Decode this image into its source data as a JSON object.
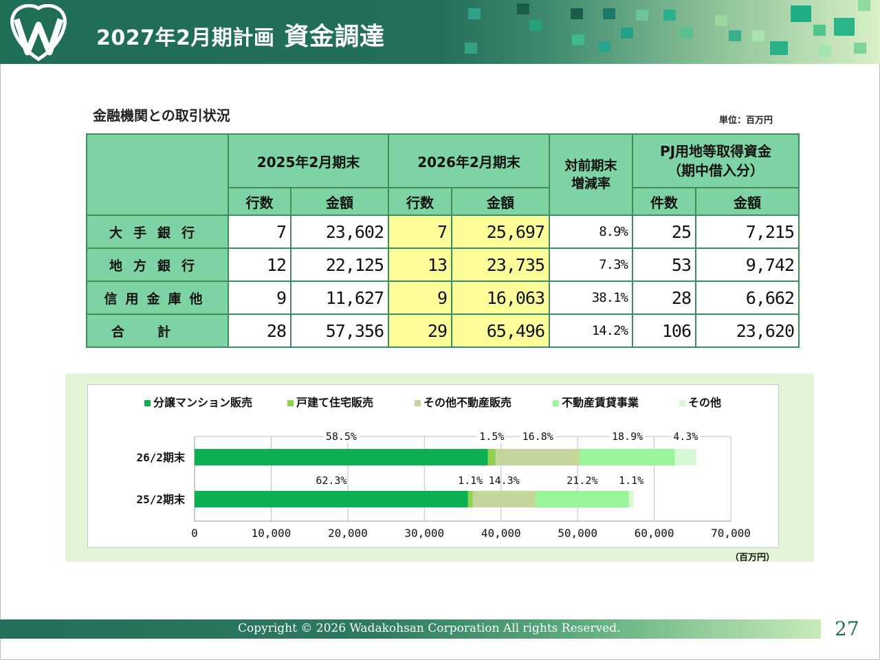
{
  "header": {
    "title": "2027年2月期計画",
    "subtitle": "資金調達",
    "brand_color": "#236f5a"
  },
  "section": {
    "title": "金融機関との取引状況",
    "unit": "単位：百万円"
  },
  "table": {
    "period_headers": [
      "2025年2月期末",
      "2026年2月期末"
    ],
    "rate_header_line1": "対前期末",
    "rate_header_line2": "増減率",
    "pj_header_line1": "PJ用地等取得資金",
    "pj_header_line2": "（期中借入分）",
    "sub_count": "行数",
    "sub_amount": "金額",
    "sub_cases": "件数",
    "rows": [
      {
        "label": "大手銀行",
        "c2025": "7",
        "a2025": "23,602",
        "c2026": "7",
        "a2026": "25,697",
        "rate": "8.9%",
        "cases": "25",
        "pj_amount": "7,215"
      },
      {
        "label": "地方銀行",
        "c2025": "12",
        "a2025": "22,125",
        "c2026": "13",
        "a2026": "23,735",
        "rate": "7.3%",
        "cases": "53",
        "pj_amount": "9,742"
      },
      {
        "label": "信用金庫他",
        "c2025": "9",
        "a2025": "11,627",
        "c2026": "9",
        "a2026": "16,063",
        "rate": "38.1%",
        "cases": "28",
        "pj_amount": "6,662"
      },
      {
        "label": "合計",
        "c2025": "28",
        "a2025": "57,356",
        "c2026": "29",
        "a2026": "65,496",
        "rate": "14.2%",
        "cases": "106",
        "pj_amount": "23,620"
      }
    ]
  },
  "chart_data": {
    "type": "bar",
    "orientation": "horizontal",
    "stacked": true,
    "categories": [
      "26/2期末",
      "25/2期末"
    ],
    "series": [
      {
        "name": "分譲マンション販売",
        "color": "#0bb050",
        "values": [
          38300,
          35700
        ],
        "labels": [
          "58.5%",
          "62.3%"
        ]
      },
      {
        "name": "戸建て住宅販売",
        "color": "#8ed24f",
        "values": [
          1000,
          600
        ],
        "labels": [
          "1.5%",
          "1.1%"
        ]
      },
      {
        "name": "その他不動産販売",
        "color": "#c4d69c",
        "values": [
          11000,
          8200
        ],
        "labels": [
          "16.8%",
          "14.3%"
        ]
      },
      {
        "name": "不動産賃貸事業",
        "color": "#98f59a",
        "values": [
          12400,
          12200
        ],
        "labels": [
          "18.9%",
          "21.2%"
        ]
      },
      {
        "name": "その他",
        "color": "#d7f8d6",
        "values": [
          2800,
          600
        ],
        "labels": [
          "4.3%",
          "1.1%"
        ]
      }
    ],
    "xlim": [
      0,
      70000
    ],
    "xticks": [
      "0",
      "10,000",
      "20,000",
      "30,000",
      "40,000",
      "50,000",
      "60,000",
      "70,000"
    ],
    "unit": "（百万円）",
    "legend_position": "top",
    "grid": true
  },
  "footer": {
    "copyright": "Copyright © 2026  Wadakohsan Corporation All rights Reserved.",
    "page": "27"
  }
}
